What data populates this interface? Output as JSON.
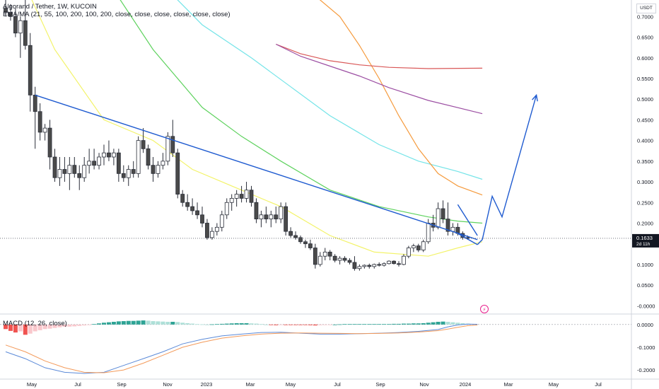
{
  "header": {
    "symbol_title": "Algorand / Tether, 1W, KUCOIN",
    "ema_legend": "EMA/MA (21, 55, 100, 200, 100, 200, close, close, close, close, close, close)",
    "currency": "USDT"
  },
  "macd_panel": {
    "legend": "MACD (12, 26, close)",
    "axis_ticks": [
      "0.0000",
      "-0.1000",
      "-0.2000"
    ]
  },
  "colors": {
    "bull": "#ffffff",
    "bear": "#4a4a4a",
    "wick": "#2a2e39",
    "ema21": "#f3f36a",
    "ema55": "#5ed25e",
    "ema100": "#74e4e8",
    "ema200": "#f59a3c",
    "ma100": "#d95757",
    "ma200": "#9c4fa3",
    "trendline": "#1f5bd0",
    "macd_line": "#5b8ad8",
    "signal_line": "#f39a5a",
    "hist_pos": "#2ea495",
    "hist_pos_light": "#aee0d8",
    "hist_neg": "#f05350",
    "hist_neg_light": "#f9c7cc"
  },
  "chart_data": {
    "type": "candlestick",
    "price_axis": {
      "ticks": [
        "0.7000",
        "0.6500",
        "0.6000",
        "0.5500",
        "0.5000",
        "0.4500",
        "0.4000",
        "0.3500",
        "0.3000",
        "0.2500",
        "0.2000",
        "0.1500",
        "0.1000",
        "0.0500",
        "-0.0000"
      ],
      "ylim": [
        -0.02,
        0.74
      ],
      "current_price": "0.1633",
      "countdown": "2d 11h"
    },
    "time_axis": [
      "May",
      "Jul",
      "Sep",
      "Nov",
      "2023",
      "Mar",
      "May",
      "Jul",
      "Sep",
      "Nov",
      "2024",
      "Mar",
      "May",
      "Jul"
    ],
    "candles": [
      [
        0.72,
        0.74,
        0.7,
        0.71
      ],
      [
        0.71,
        0.73,
        0.69,
        0.7
      ],
      [
        0.7,
        0.72,
        0.65,
        0.66
      ],
      [
        0.66,
        0.7,
        0.6,
        0.69
      ],
      [
        0.69,
        0.74,
        0.62,
        0.63
      ],
      [
        0.63,
        0.66,
        0.47,
        0.51
      ],
      [
        0.51,
        0.53,
        0.38,
        0.47
      ],
      [
        0.47,
        0.49,
        0.4,
        0.42
      ],
      [
        0.42,
        0.44,
        0.4,
        0.43
      ],
      [
        0.43,
        0.45,
        0.33,
        0.36
      ],
      [
        0.36,
        0.38,
        0.3,
        0.31
      ],
      [
        0.31,
        0.36,
        0.29,
        0.33
      ],
      [
        0.33,
        0.36,
        0.3,
        0.32
      ],
      [
        0.32,
        0.36,
        0.28,
        0.34
      ],
      [
        0.34,
        0.36,
        0.31,
        0.32
      ],
      [
        0.32,
        0.34,
        0.28,
        0.31
      ],
      [
        0.31,
        0.36,
        0.3,
        0.34
      ],
      [
        0.34,
        0.38,
        0.32,
        0.35
      ],
      [
        0.35,
        0.38,
        0.33,
        0.34
      ],
      [
        0.34,
        0.37,
        0.33,
        0.36
      ],
      [
        0.36,
        0.39,
        0.34,
        0.37
      ],
      [
        0.37,
        0.4,
        0.35,
        0.36
      ],
      [
        0.36,
        0.38,
        0.34,
        0.37
      ],
      [
        0.37,
        0.38,
        0.3,
        0.32
      ],
      [
        0.32,
        0.34,
        0.3,
        0.31
      ],
      [
        0.31,
        0.34,
        0.29,
        0.33
      ],
      [
        0.33,
        0.35,
        0.31,
        0.32
      ],
      [
        0.32,
        0.41,
        0.31,
        0.4
      ],
      [
        0.4,
        0.43,
        0.37,
        0.38
      ],
      [
        0.38,
        0.39,
        0.33,
        0.34
      ],
      [
        0.34,
        0.36,
        0.3,
        0.32
      ],
      [
        0.32,
        0.35,
        0.31,
        0.34
      ],
      [
        0.34,
        0.37,
        0.33,
        0.35
      ],
      [
        0.35,
        0.42,
        0.34,
        0.41
      ],
      [
        0.41,
        0.45,
        0.36,
        0.37
      ],
      [
        0.37,
        0.38,
        0.26,
        0.27
      ],
      [
        0.27,
        0.28,
        0.24,
        0.25
      ],
      [
        0.25,
        0.27,
        0.23,
        0.24
      ],
      [
        0.24,
        0.26,
        0.22,
        0.23
      ],
      [
        0.23,
        0.25,
        0.21,
        0.22
      ],
      [
        0.22,
        0.24,
        0.19,
        0.2
      ],
      [
        0.2,
        0.21,
        0.16,
        0.165
      ],
      [
        0.165,
        0.19,
        0.16,
        0.18
      ],
      [
        0.18,
        0.2,
        0.17,
        0.19
      ],
      [
        0.19,
        0.23,
        0.18,
        0.22
      ],
      [
        0.22,
        0.26,
        0.21,
        0.25
      ],
      [
        0.25,
        0.27,
        0.23,
        0.26
      ],
      [
        0.26,
        0.28,
        0.24,
        0.27
      ],
      [
        0.27,
        0.29,
        0.25,
        0.26
      ],
      [
        0.26,
        0.3,
        0.25,
        0.28
      ],
      [
        0.28,
        0.29,
        0.24,
        0.25
      ],
      [
        0.25,
        0.26,
        0.2,
        0.21
      ],
      [
        0.21,
        0.23,
        0.19,
        0.22
      ],
      [
        0.22,
        0.24,
        0.2,
        0.21
      ],
      [
        0.21,
        0.23,
        0.19,
        0.22
      ],
      [
        0.22,
        0.24,
        0.2,
        0.21
      ],
      [
        0.21,
        0.25,
        0.2,
        0.24
      ],
      [
        0.24,
        0.25,
        0.17,
        0.18
      ],
      [
        0.18,
        0.19,
        0.165,
        0.17
      ],
      [
        0.17,
        0.18,
        0.16,
        0.165
      ],
      [
        0.165,
        0.17,
        0.15,
        0.155
      ],
      [
        0.155,
        0.16,
        0.14,
        0.15
      ],
      [
        0.15,
        0.16,
        0.135,
        0.14
      ],
      [
        0.14,
        0.15,
        0.09,
        0.1
      ],
      [
        0.1,
        0.13,
        0.095,
        0.12
      ],
      [
        0.12,
        0.14,
        0.11,
        0.13
      ],
      [
        0.13,
        0.135,
        0.11,
        0.12
      ],
      [
        0.12,
        0.125,
        0.105,
        0.11
      ],
      [
        0.11,
        0.12,
        0.1,
        0.115
      ],
      [
        0.115,
        0.12,
        0.105,
        0.11
      ],
      [
        0.11,
        0.115,
        0.1,
        0.105
      ],
      [
        0.105,
        0.12,
        0.085,
        0.09
      ],
      [
        0.09,
        0.1,
        0.085,
        0.095
      ],
      [
        0.095,
        0.1,
        0.09,
        0.098
      ],
      [
        0.098,
        0.102,
        0.09,
        0.095
      ],
      [
        0.095,
        0.102,
        0.09,
        0.1
      ],
      [
        0.1,
        0.105,
        0.095,
        0.098
      ],
      [
        0.098,
        0.105,
        0.095,
        0.102
      ],
      [
        0.102,
        0.11,
        0.1,
        0.108
      ],
      [
        0.108,
        0.11,
        0.1,
        0.102
      ],
      [
        0.102,
        0.108,
        0.095,
        0.1
      ],
      [
        0.1,
        0.125,
        0.098,
        0.12
      ],
      [
        0.12,
        0.145,
        0.115,
        0.14
      ],
      [
        0.14,
        0.15,
        0.13,
        0.145
      ],
      [
        0.145,
        0.15,
        0.13,
        0.135
      ],
      [
        0.135,
        0.16,
        0.13,
        0.155
      ],
      [
        0.155,
        0.21,
        0.15,
        0.2
      ],
      [
        0.2,
        0.22,
        0.18,
        0.19
      ],
      [
        0.19,
        0.25,
        0.185,
        0.235
      ],
      [
        0.235,
        0.255,
        0.2,
        0.21
      ],
      [
        0.21,
        0.25,
        0.17,
        0.18
      ],
      [
        0.18,
        0.2,
        0.17,
        0.19
      ],
      [
        0.19,
        0.2,
        0.17,
        0.175
      ],
      [
        0.175,
        0.18,
        0.16,
        0.165
      ],
      [
        0.165,
        0.17,
        0.16,
        0.163
      ]
    ],
    "ma_lines": [
      {
        "label": "EMA 21",
        "color_key": "ema21",
        "points": [
          [
            3,
            0.8
          ],
          [
            10,
            0.62
          ],
          [
            20,
            0.45
          ],
          [
            30,
            0.4
          ],
          [
            38,
            0.33
          ],
          [
            46,
            0.29
          ],
          [
            56,
            0.24
          ],
          [
            66,
            0.17
          ],
          [
            75,
            0.13
          ],
          [
            86,
            0.12
          ],
          [
            92,
            0.14
          ],
          [
            97,
            0.155
          ]
        ]
      },
      {
        "label": "EMA 55",
        "color_key": "ema55",
        "points": [
          [
            20,
            0.8
          ],
          [
            30,
            0.62
          ],
          [
            40,
            0.48
          ],
          [
            48,
            0.41
          ],
          [
            56,
            0.35
          ],
          [
            66,
            0.28
          ],
          [
            76,
            0.24
          ],
          [
            86,
            0.215
          ],
          [
            92,
            0.205
          ],
          [
            97,
            0.2
          ]
        ]
      },
      {
        "label": "EMA 100",
        "color_key": "ema100",
        "points": [
          [
            30,
            0.8
          ],
          [
            40,
            0.68
          ],
          [
            50,
            0.6
          ],
          [
            58,
            0.53
          ],
          [
            66,
            0.46
          ],
          [
            76,
            0.39
          ],
          [
            84,
            0.35
          ],
          [
            92,
            0.325
          ],
          [
            97,
            0.306
          ]
        ]
      },
      {
        "label": "EMA 200",
        "color_key": "ema200",
        "points": [
          [
            56,
            0.8
          ],
          [
            62,
            0.76
          ],
          [
            68,
            0.7
          ],
          [
            72,
            0.63
          ],
          [
            76,
            0.55
          ],
          [
            80,
            0.46
          ],
          [
            84,
            0.38
          ],
          [
            88,
            0.32
          ],
          [
            92,
            0.29
          ],
          [
            97,
            0.268
          ]
        ]
      },
      {
        "label": "MA 100",
        "color_key": "ma100",
        "points": [
          [
            55,
            0.633
          ],
          [
            60,
            0.61
          ],
          [
            66,
            0.593
          ],
          [
            72,
            0.583
          ],
          [
            78,
            0.577
          ],
          [
            86,
            0.574
          ],
          [
            97,
            0.575
          ]
        ]
      },
      {
        "label": "MA 200",
        "color_key": "ma200",
        "points": [
          [
            55,
            0.633
          ],
          [
            60,
            0.604
          ],
          [
            66,
            0.58
          ],
          [
            72,
            0.556
          ],
          [
            78,
            0.528
          ],
          [
            86,
            0.497
          ],
          [
            97,
            0.465
          ]
        ]
      }
    ],
    "trendlines": [
      {
        "label": "downtrend",
        "points": [
          [
            6,
            0.51
          ],
          [
            96,
            0.16
          ]
        ]
      },
      {
        "label": "wedge-upper",
        "points": [
          [
            92,
            0.245
          ],
          [
            96,
            0.17
          ]
        ]
      },
      {
        "label": "wedge-lower",
        "points": [
          [
            92,
            0.175
          ],
          [
            96,
            0.148
          ]
        ]
      },
      {
        "label": "projection",
        "points": [
          [
            96,
            0.148
          ],
          [
            97,
            0.16
          ],
          [
            99,
            0.265
          ],
          [
            101,
            0.215
          ],
          [
            108,
            0.51
          ]
        ]
      }
    ],
    "macd": {
      "ylim": [
        -0.24,
        0.04
      ],
      "histogram": [
        -0.02,
        -0.028,
        -0.035,
        -0.03,
        -0.045,
        -0.04,
        -0.03,
        -0.025,
        -0.02,
        -0.018,
        -0.015,
        -0.012,
        -0.01,
        -0.009,
        -0.008,
        -0.006,
        -0.004,
        -0.002,
        0.002,
        0.005,
        0.008,
        0.01,
        0.012,
        0.014,
        0.015,
        0.016,
        0.016,
        0.017,
        0.018,
        0.017,
        0.015,
        0.014,
        0.013,
        0.012,
        0.012,
        0.011,
        0.008,
        0.006,
        0.004,
        0.002,
        0.001,
        0.0,
        0.001,
        0.002,
        0.003,
        0.004,
        0.005,
        0.006,
        0.006,
        0.006,
        0.005,
        0.004,
        0.002,
        0.0,
        -0.002,
        -0.003,
        -0.002,
        -0.002,
        -0.002,
        -0.002,
        -0.002,
        -0.002,
        -0.003,
        -0.004,
        -0.003,
        -0.002,
        -0.001,
        0.0,
        0.001,
        0.002,
        0.002,
        0.002,
        0.002,
        0.002,
        0.002,
        0.002,
        0.002,
        0.002,
        0.002,
        0.003,
        0.003,
        0.004,
        0.004,
        0.005,
        0.005,
        0.006,
        0.008,
        0.01,
        0.012,
        0.013,
        0.012,
        0.01,
        0.008,
        0.006,
        0.004
      ],
      "macd_line": [
        [
          0,
          -0.12
        ],
        [
          4,
          -0.15
        ],
        [
          8,
          -0.19
        ],
        [
          12,
          -0.21
        ],
        [
          16,
          -0.215
        ],
        [
          20,
          -0.21
        ],
        [
          24,
          -0.18
        ],
        [
          28,
          -0.15
        ],
        [
          32,
          -0.12
        ],
        [
          36,
          -0.085
        ],
        [
          40,
          -0.065
        ],
        [
          44,
          -0.05
        ],
        [
          48,
          -0.042
        ],
        [
          52,
          -0.035
        ],
        [
          56,
          -0.034
        ],
        [
          60,
          -0.038
        ],
        [
          64,
          -0.042
        ],
        [
          68,
          -0.042
        ],
        [
          72,
          -0.04
        ],
        [
          76,
          -0.038
        ],
        [
          80,
          -0.035
        ],
        [
          84,
          -0.03
        ],
        [
          88,
          -0.022
        ],
        [
          90,
          -0.01
        ],
        [
          92,
          -0.002
        ],
        [
          94,
          0.002
        ],
        [
          96,
          0.001
        ]
      ],
      "signal_line": [
        [
          0,
          -0.09
        ],
        [
          4,
          -0.12
        ],
        [
          8,
          -0.16
        ],
        [
          12,
          -0.19
        ],
        [
          16,
          -0.21
        ],
        [
          20,
          -0.212
        ],
        [
          24,
          -0.2
        ],
        [
          28,
          -0.17
        ],
        [
          32,
          -0.135
        ],
        [
          36,
          -0.1
        ],
        [
          40,
          -0.078
        ],
        [
          44,
          -0.06
        ],
        [
          48,
          -0.05
        ],
        [
          52,
          -0.042
        ],
        [
          56,
          -0.038
        ],
        [
          60,
          -0.037
        ],
        [
          64,
          -0.038
        ],
        [
          68,
          -0.039
        ],
        [
          72,
          -0.04
        ],
        [
          76,
          -0.039
        ],
        [
          80,
          -0.037
        ],
        [
          84,
          -0.033
        ],
        [
          88,
          -0.027
        ],
        [
          90,
          -0.02
        ],
        [
          92,
          -0.012
        ],
        [
          94,
          -0.005
        ],
        [
          96,
          -0.002
        ]
      ]
    }
  }
}
